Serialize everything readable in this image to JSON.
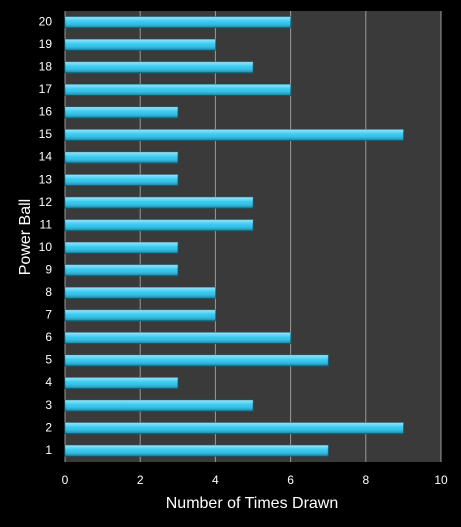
{
  "chart_data": {
    "type": "barh",
    "x_label": "Number of Times Drawn",
    "y_label": "Power Ball",
    "categories": [
      "1",
      "2",
      "3",
      "4",
      "5",
      "6",
      "7",
      "8",
      "9",
      "10",
      "11",
      "12",
      "13",
      "14",
      "15",
      "16",
      "17",
      "18",
      "19",
      "20"
    ],
    "values": [
      7,
      9,
      5,
      3,
      7,
      6,
      4,
      4,
      3,
      3,
      5,
      5,
      3,
      3,
      9,
      3,
      6,
      5,
      4,
      6
    ],
    "color": "#1ec4f0",
    "xlim": [
      0,
      10
    ],
    "xticks": [
      0,
      2,
      4,
      6,
      8,
      10
    ],
    "grid": true
  }
}
